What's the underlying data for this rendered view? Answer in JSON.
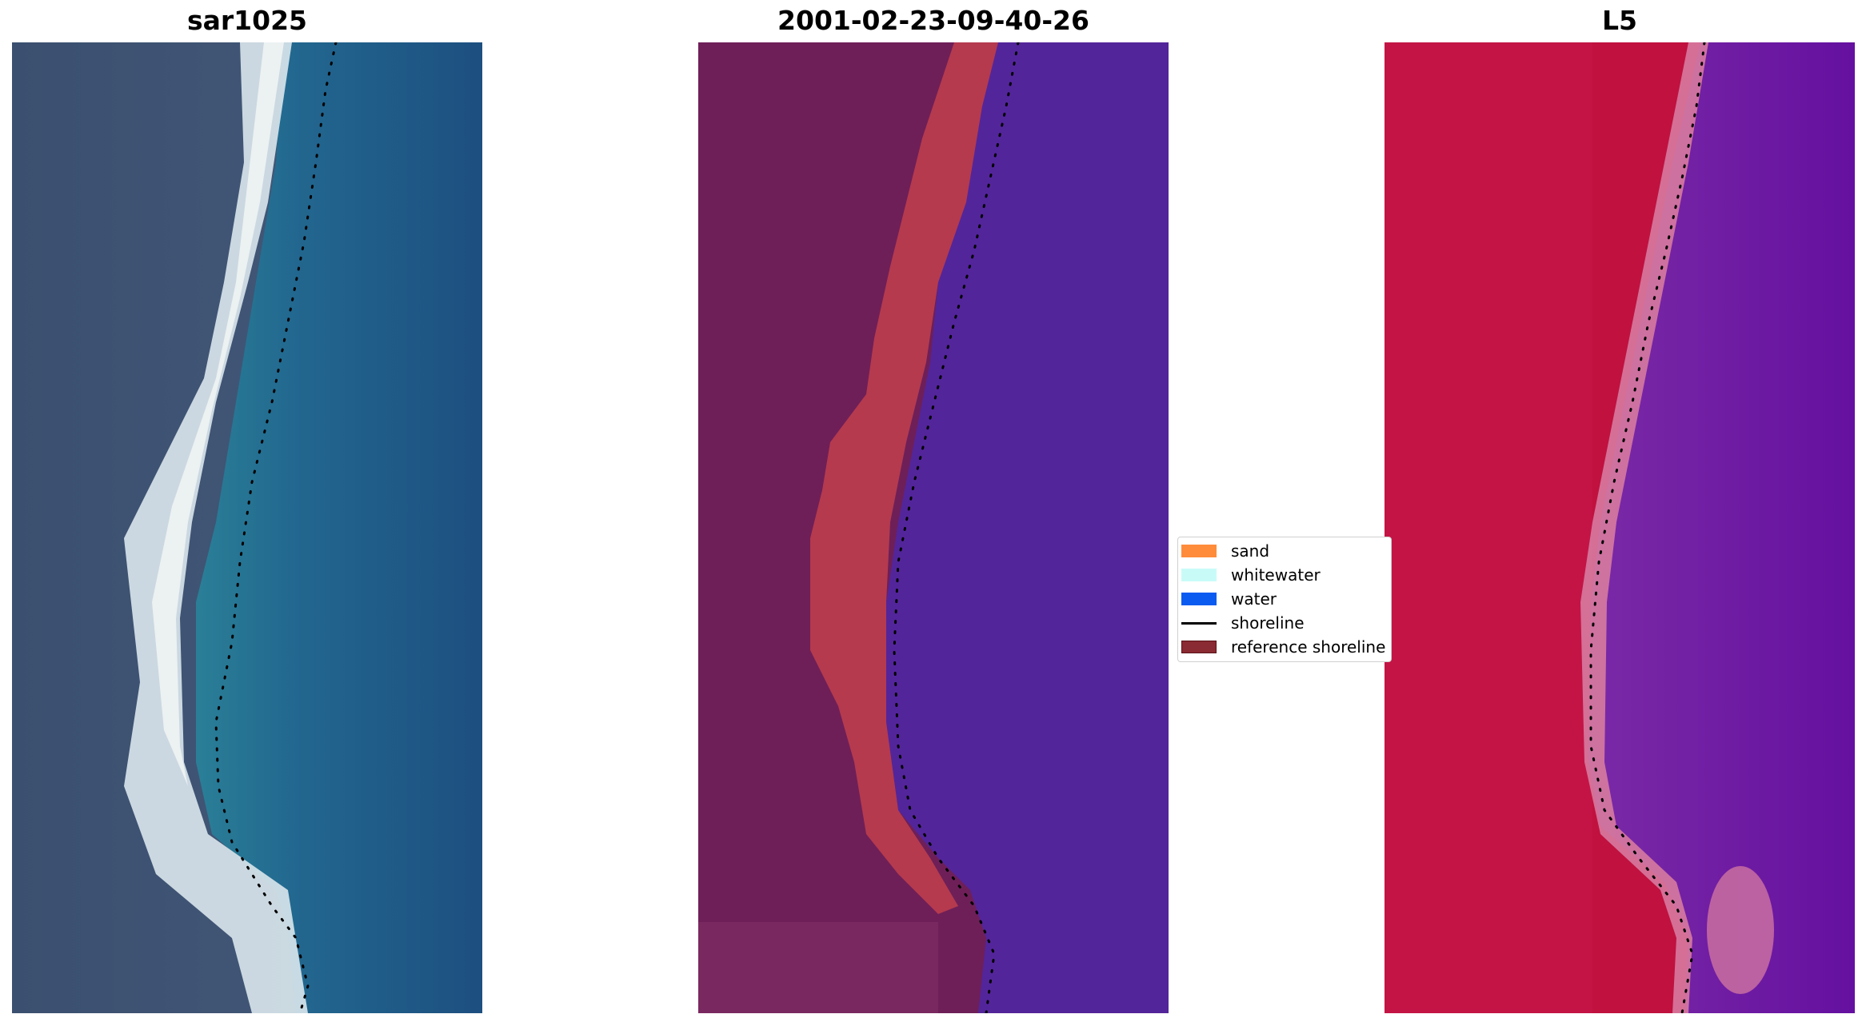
{
  "figure": {
    "panels": [
      {
        "title": "sar1025",
        "kind": "rgb-image"
      },
      {
        "title": "2001-02-23-09-40-26",
        "kind": "classified-image"
      },
      {
        "title": "L5",
        "kind": "index-image"
      }
    ],
    "legend": {
      "items": [
        {
          "label": "sand",
          "color": "#ff8c3a",
          "shape": "patch"
        },
        {
          "label": "whitewater",
          "color": "#c8fbf8",
          "shape": "patch"
        },
        {
          "label": "water",
          "color": "#0b5bf0",
          "shape": "patch"
        },
        {
          "label": "shoreline",
          "color": "#000000",
          "shape": "line"
        },
        {
          "label": "reference shoreline",
          "color": "#8a2a32",
          "shape": "patch"
        }
      ]
    },
    "colors": {
      "rgb_land": "#3f5574",
      "rgb_beach": "#e9eef0",
      "rgb_water": "#1f5f8c",
      "class_land": "#6e1f58",
      "class_sand": "#b53a4e",
      "class_water": "#53259a",
      "index_land": "#c0113f",
      "index_edge": "#d77aa0",
      "index_water": "#6a169c",
      "shoreline_dots": "#000000"
    }
  }
}
